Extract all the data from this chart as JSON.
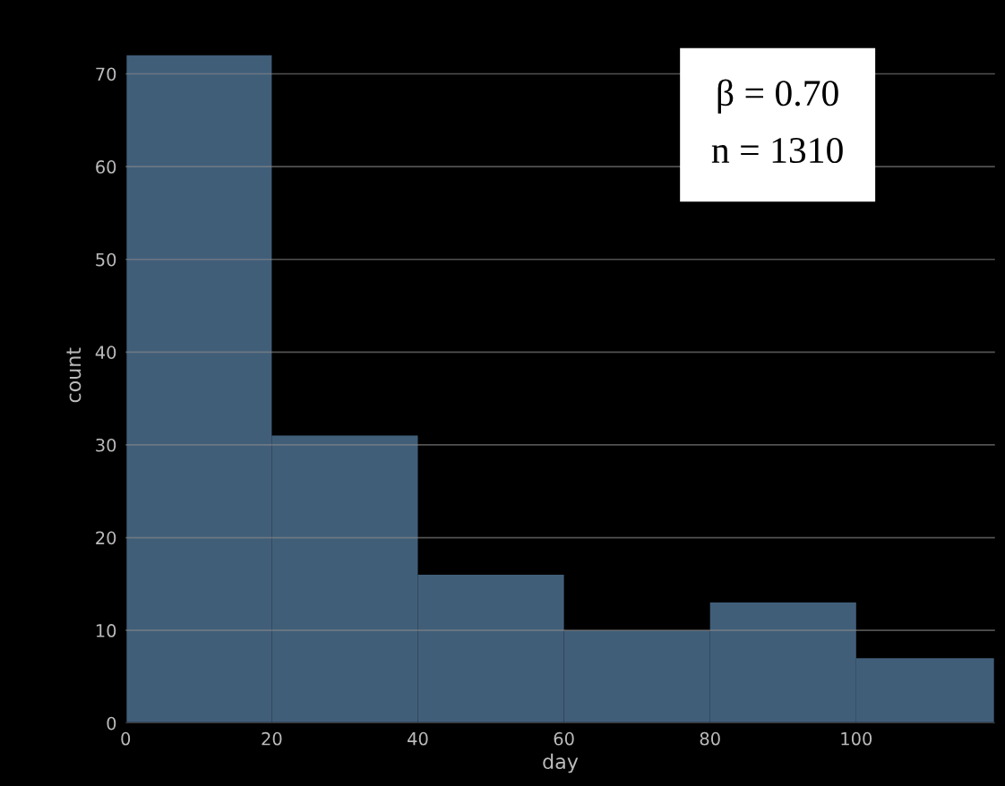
{
  "chart_data": {
    "type": "histogram",
    "xlabel": "day",
    "ylabel": "count",
    "bins": [
      0,
      20,
      40,
      60,
      80,
      100,
      119
    ],
    "values": [
      72,
      31,
      16,
      10,
      13,
      7
    ],
    "color": "#44637f",
    "xlim": [
      0,
      119
    ],
    "xticks": [
      0,
      20,
      40,
      60,
      80,
      100
    ],
    "ylim": [
      0,
      75
    ],
    "yticks": [
      0,
      10,
      20,
      30,
      40,
      50,
      60,
      70
    ],
    "grid": "y",
    "annotations": [
      "β = 0.70",
      "n = 1310"
    ]
  }
}
